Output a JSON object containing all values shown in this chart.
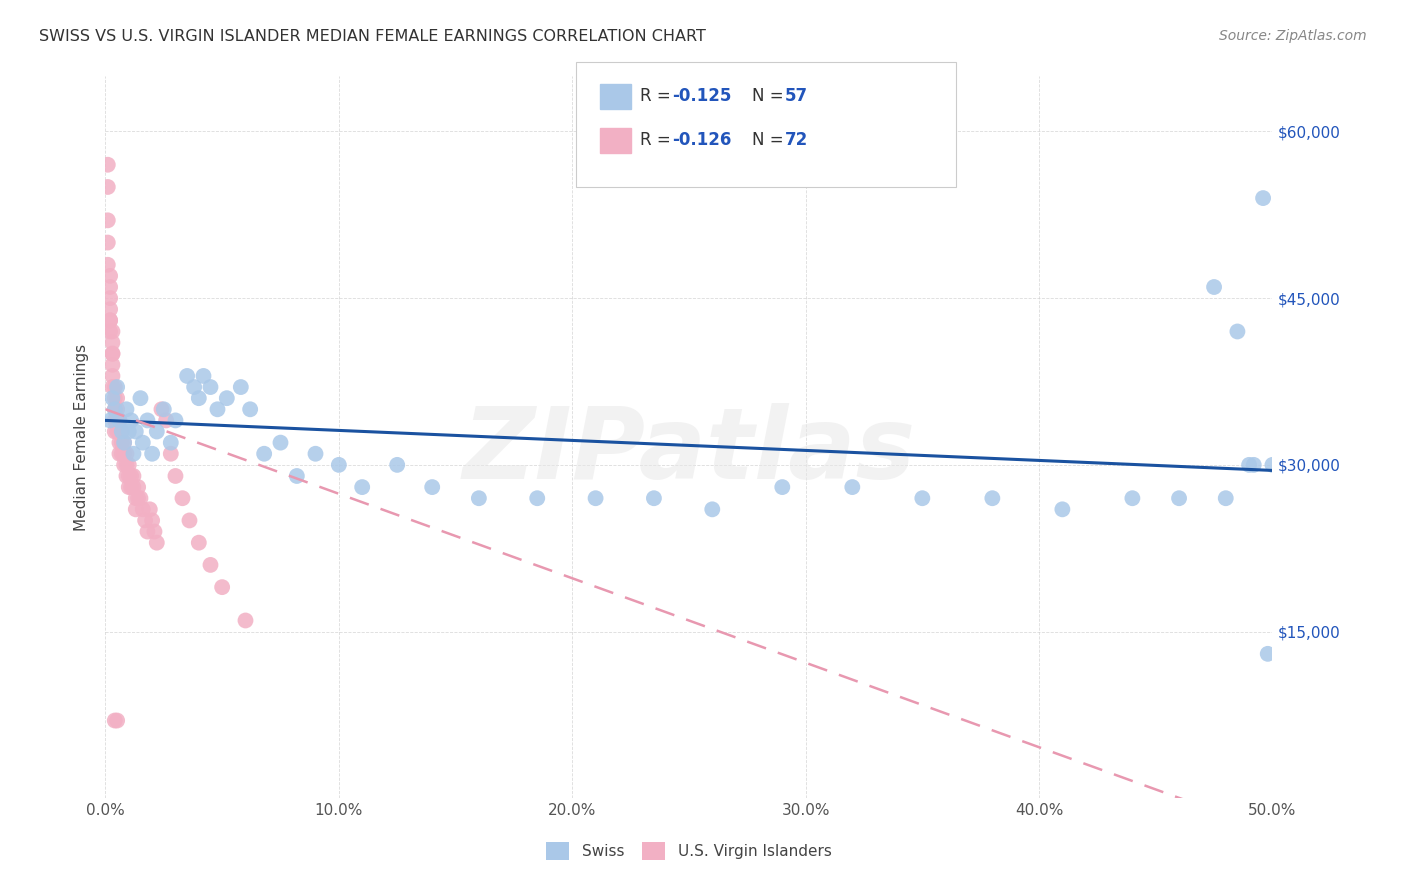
{
  "title": "SWISS VS U.S. VIRGIN ISLANDER MEDIAN FEMALE EARNINGS CORRELATION CHART",
  "source": "Source: ZipAtlas.com",
  "ylabel": "Median Female Earnings",
  "xlim": [
    0,
    0.5
  ],
  "ylim": [
    0,
    65000
  ],
  "xtick_vals": [
    0.0,
    0.1,
    0.2,
    0.3,
    0.4,
    0.5
  ],
  "xtick_labels": [
    "0.0%",
    "10.0%",
    "20.0%",
    "30.0%",
    "40.0%",
    "50.0%"
  ],
  "ytick_right_vals": [
    15000,
    30000,
    45000,
    60000
  ],
  "ytick_right_labels": [
    "$15,000",
    "$30,000",
    "$45,000",
    "$60,000"
  ],
  "watermark": "ZIPatlas",
  "swiss_r": "-0.125",
  "swiss_n": "57",
  "vi_r": "-0.126",
  "vi_n": "72",
  "swiss_fill_color": "#aac8e8",
  "vi_fill_color": "#f2b0c4",
  "swiss_line_color": "#1a52a0",
  "vi_line_color": "#e898b0",
  "swiss_x": [
    0.002,
    0.003,
    0.004,
    0.005,
    0.006,
    0.007,
    0.008,
    0.009,
    0.01,
    0.011,
    0.012,
    0.013,
    0.015,
    0.016,
    0.018,
    0.02,
    0.022,
    0.025,
    0.028,
    0.03,
    0.035,
    0.038,
    0.04,
    0.042,
    0.045,
    0.048,
    0.052,
    0.058,
    0.062,
    0.068,
    0.075,
    0.082,
    0.09,
    0.1,
    0.11,
    0.125,
    0.14,
    0.16,
    0.185,
    0.21,
    0.235,
    0.26,
    0.29,
    0.32,
    0.35,
    0.38,
    0.41,
    0.44,
    0.46,
    0.475,
    0.485,
    0.492,
    0.496,
    0.5,
    0.498,
    0.49,
    0.48
  ],
  "swiss_y": [
    34000,
    36000,
    35000,
    37000,
    34000,
    33000,
    32000,
    35000,
    33000,
    34000,
    31000,
    33000,
    36000,
    32000,
    34000,
    31000,
    33000,
    35000,
    32000,
    34000,
    38000,
    37000,
    36000,
    38000,
    37000,
    35000,
    36000,
    37000,
    35000,
    31000,
    32000,
    29000,
    31000,
    30000,
    28000,
    30000,
    28000,
    27000,
    27000,
    27000,
    27000,
    26000,
    28000,
    28000,
    27000,
    27000,
    26000,
    27000,
    27000,
    46000,
    42000,
    30000,
    54000,
    30000,
    13000,
    30000,
    27000
  ],
  "vi_x": [
    0.001,
    0.001,
    0.001,
    0.001,
    0.001,
    0.002,
    0.002,
    0.002,
    0.002,
    0.002,
    0.002,
    0.003,
    0.003,
    0.003,
    0.003,
    0.003,
    0.003,
    0.004,
    0.004,
    0.004,
    0.004,
    0.004,
    0.005,
    0.005,
    0.005,
    0.005,
    0.006,
    0.006,
    0.006,
    0.006,
    0.007,
    0.007,
    0.007,
    0.008,
    0.008,
    0.008,
    0.009,
    0.009,
    0.009,
    0.01,
    0.01,
    0.01,
    0.011,
    0.011,
    0.012,
    0.012,
    0.013,
    0.013,
    0.014,
    0.014,
    0.015,
    0.016,
    0.017,
    0.018,
    0.019,
    0.02,
    0.021,
    0.022,
    0.024,
    0.026,
    0.028,
    0.03,
    0.033,
    0.036,
    0.04,
    0.045,
    0.05,
    0.06,
    0.002,
    0.003,
    0.004,
    0.005
  ],
  "vi_y": [
    57000,
    55000,
    52000,
    50000,
    48000,
    47000,
    46000,
    45000,
    44000,
    43000,
    42000,
    42000,
    41000,
    40000,
    39000,
    38000,
    37000,
    37000,
    36000,
    35000,
    34000,
    33000,
    36000,
    35000,
    34000,
    33000,
    34000,
    33000,
    32000,
    31000,
    33000,
    32000,
    31000,
    32000,
    31000,
    30000,
    31000,
    30000,
    29000,
    30000,
    29000,
    28000,
    29000,
    28000,
    29000,
    28000,
    27000,
    26000,
    28000,
    27000,
    27000,
    26000,
    25000,
    24000,
    26000,
    25000,
    24000,
    23000,
    35000,
    34000,
    31000,
    29000,
    27000,
    25000,
    23000,
    21000,
    19000,
    16000,
    43000,
    40000,
    7000,
    7000
  ]
}
